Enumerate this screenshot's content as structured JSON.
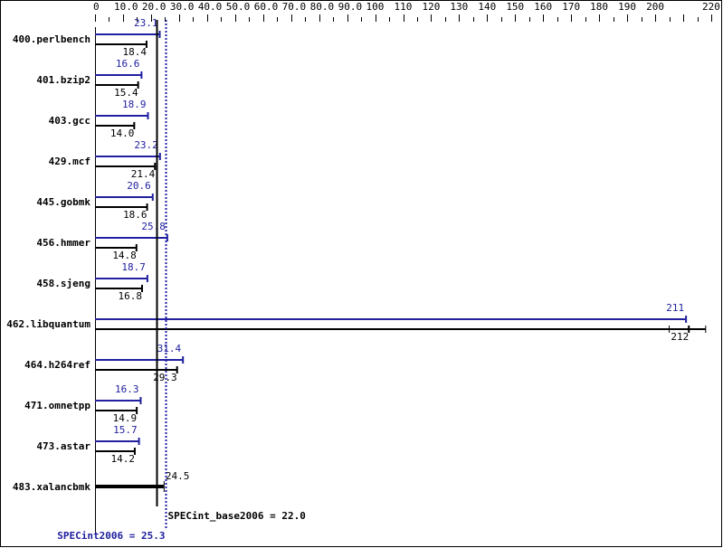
{
  "chart_data": {
    "type": "bar",
    "orientation": "horizontal",
    "xlim": [
      0,
      220
    ],
    "tick_labels": [
      "0",
      "10.0",
      "20.0",
      "30.0",
      "40.0",
      "50.0",
      "60.0",
      "70.0",
      "80.0",
      "90.0",
      "100",
      "110",
      "120",
      "130",
      "140",
      "150",
      "160",
      "170",
      "180",
      "190",
      "200",
      "220"
    ],
    "tick_values": [
      0,
      10,
      20,
      30,
      40,
      50,
      60,
      70,
      80,
      90,
      100,
      110,
      120,
      130,
      140,
      150,
      160,
      170,
      180,
      190,
      200,
      220
    ],
    "categories": [
      "400.perlbench",
      "401.bzip2",
      "403.gcc",
      "429.mcf",
      "445.gobmk",
      "456.hmmer",
      "458.sjeng",
      "462.libquantum",
      "464.h264ref",
      "471.omnetpp",
      "473.astar",
      "483.xalancbmk"
    ],
    "series": [
      {
        "name": "SPECint2006",
        "color": "#2020a0",
        "values": [
          23.1,
          16.6,
          18.9,
          23.2,
          20.6,
          25.8,
          18.7,
          211,
          31.4,
          16.3,
          15.7,
          null
        ]
      },
      {
        "name": "SPECint_base2006",
        "color": "#000000",
        "values": [
          18.4,
          15.4,
          14.0,
          21.4,
          18.6,
          14.8,
          16.8,
          212,
          29.3,
          14.9,
          14.2,
          24.5
        ]
      }
    ],
    "peak_labels": [
      "23.1",
      "16.6",
      "18.9",
      "23.2",
      "20.6",
      "25.8",
      "18.7",
      "211",
      "31.4",
      "16.3",
      "15.7",
      ""
    ],
    "base_labels": [
      "18.4",
      "15.4",
      "14.0",
      "21.4",
      "18.6",
      "14.8",
      "16.8",
      "212",
      "29.3",
      "14.9",
      "14.2",
      "24.5"
    ],
    "base_range_libquantum": [
      205,
      218
    ],
    "reference_lines": {
      "base": {
        "value": 22.0,
        "label": "SPECint_base2006 = 22.0",
        "color": "#000000"
      },
      "peak": {
        "value": 25.3,
        "label": "SPECint2006 = 25.3",
        "color": "#2020a0"
      }
    }
  }
}
